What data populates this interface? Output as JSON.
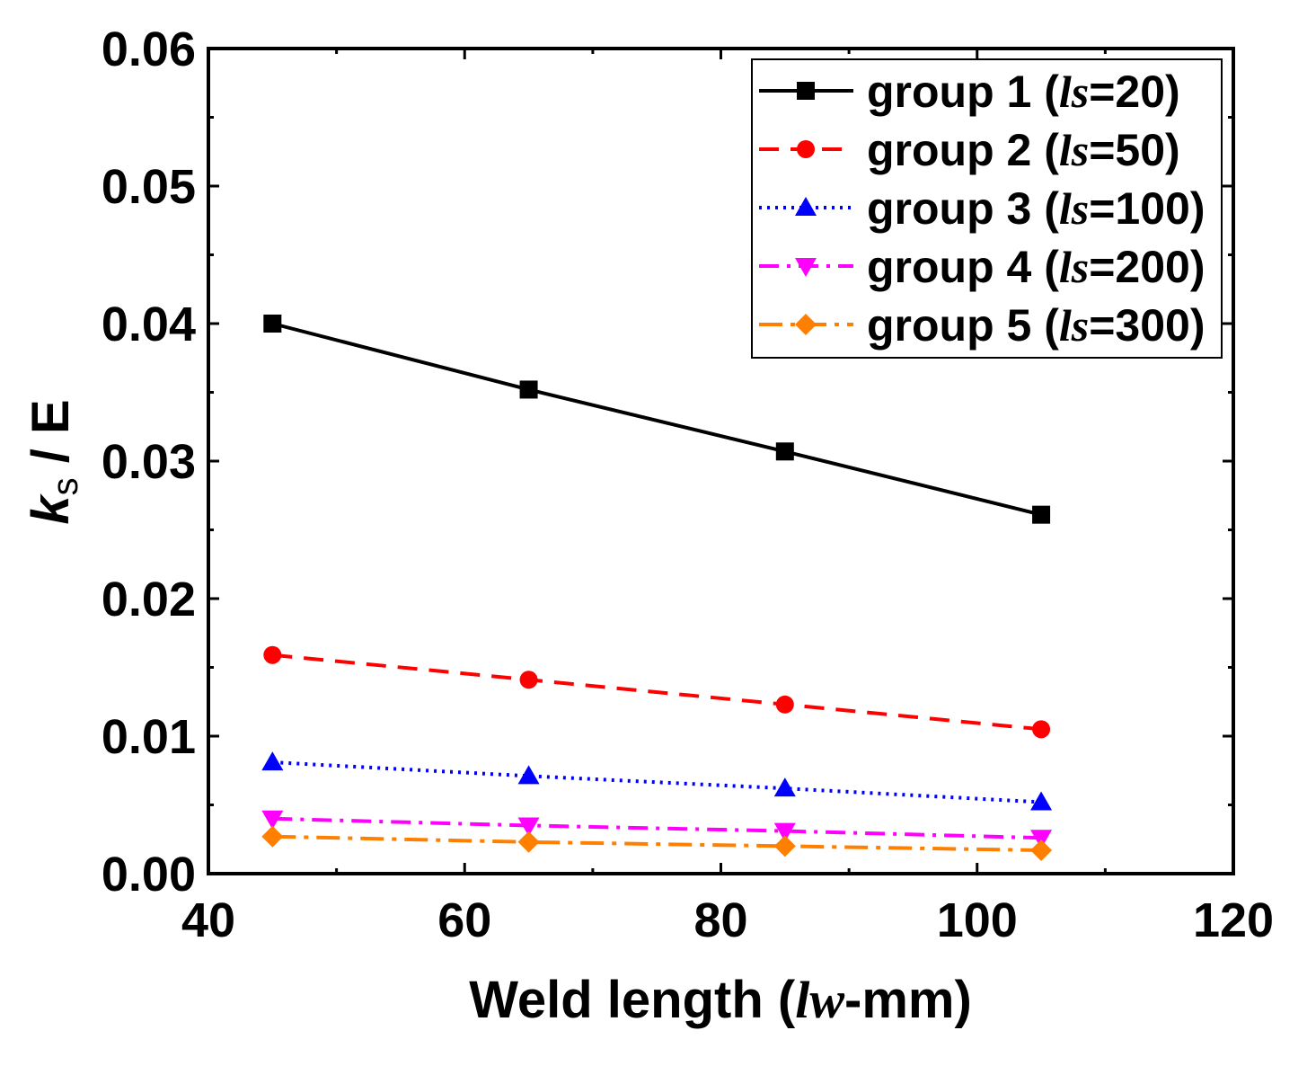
{
  "chart_data": {
    "type": "line",
    "x_axis": {
      "label_main": "Weld length (",
      "label_ital": "lw",
      "label_tail": "-mm)",
      "range": [
        40,
        120
      ],
      "ticks": [
        "40",
        "60",
        "80",
        "100",
        "120"
      ]
    },
    "y_axis": {
      "label_k": "k",
      "label_s": "s",
      "label_tail": " / E",
      "range": [
        0,
        0.06
      ],
      "ticks": [
        "0.00",
        "0.01",
        "0.02",
        "0.03",
        "0.04",
        "0.05",
        "0.06"
      ]
    },
    "x": [
      45,
      65,
      85,
      105
    ],
    "series": [
      {
        "name": "group 1 (",
        "ital": "ls",
        "tail": "=20)",
        "values": [
          0.04,
          0.0352,
          0.0307,
          0.0261
        ],
        "color": "#000000",
        "marker": "square",
        "dash": ""
      },
      {
        "name": "group 2 (",
        "ital": "ls",
        "tail": "=50)",
        "values": [
          0.0159,
          0.0141,
          0.0123,
          0.0105
        ],
        "color": "#ff0000",
        "marker": "circle",
        "dash": "22,13"
      },
      {
        "name": "group 3 (",
        "ital": "ls",
        "tail": "=100)",
        "values": [
          0.0081,
          0.0071,
          0.0062,
          0.0052
        ],
        "color": "#0000ff",
        "marker": "triangle-up",
        "dash": "3,6"
      },
      {
        "name": "group 4 (",
        "ital": "ls",
        "tail": "=200)",
        "values": [
          0.004,
          0.0035,
          0.0031,
          0.0026
        ],
        "color": "#ff00ff",
        "marker": "triangle-down",
        "dash": "22,9,4,9"
      },
      {
        "name": "group 5 (",
        "ital": "ls",
        "tail": "=300)",
        "values": [
          0.0027,
          0.0023,
          0.002,
          0.0017
        ],
        "color": "#ff8000",
        "marker": "diamond",
        "dash": "26,9,5,9"
      }
    ],
    "legend_position": "top-right",
    "grid": false
  }
}
